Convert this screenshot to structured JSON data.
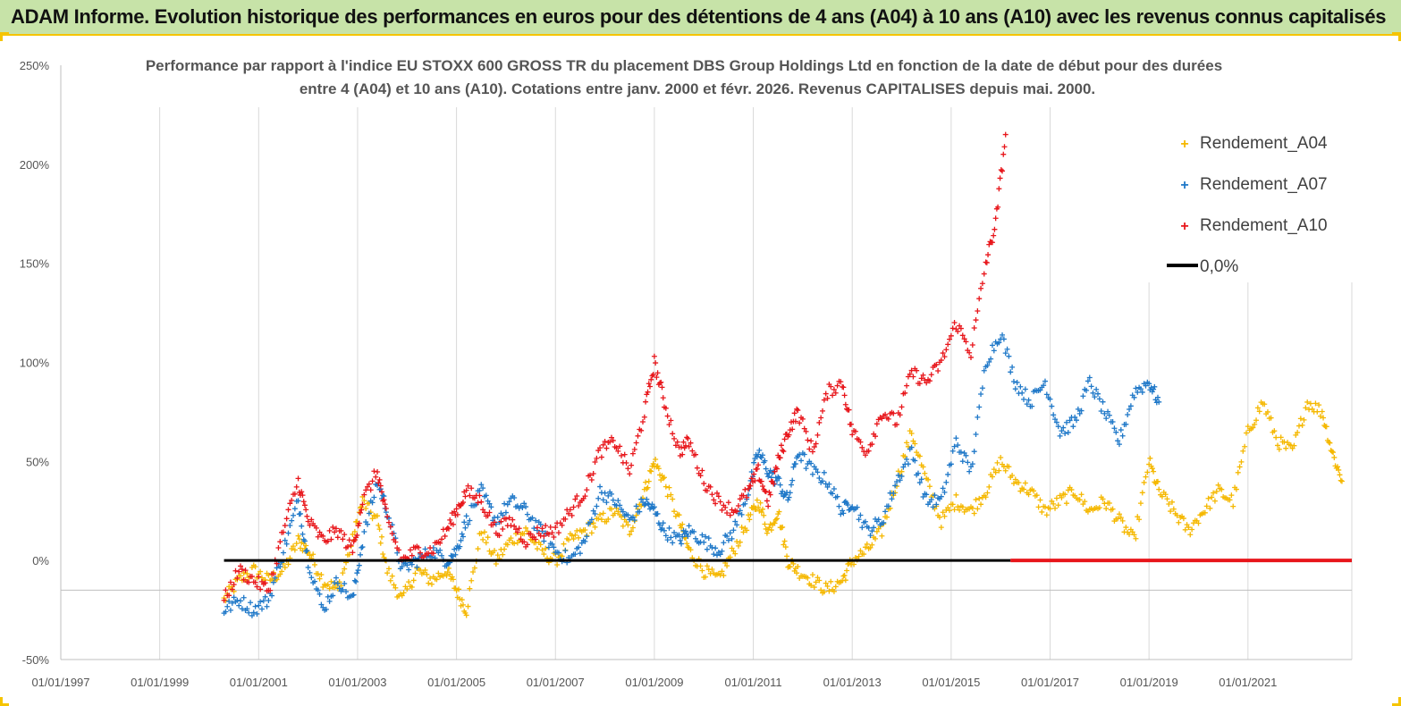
{
  "header": {
    "title": "ADAM Informe. Evolution historique des performances en euros pour des détentions de 4 ans (A04) à 10 ans (A10) avec les revenus connus capitalisés"
  },
  "colors": {
    "a04": "#f5b800",
    "a07": "#1f78c8",
    "a10": "#e8161b",
    "zero": "#000000",
    "banner": "#c7e3a8",
    "accent": "#f5c400"
  },
  "chart_data": {
    "type": "scatter",
    "title_lines": [
      "Performance par rapport à l'indice EU STOXX 600 GROSS TR  du placement DBS Group Holdings Ltd en fonction de la date de début pour des durées",
      "entre 4 (A04) et 10 ans (A10).  Cotations entre janv. 2000 et févr. 2026. Revenus CAPITALISES depuis mai. 2000."
    ],
    "xlabel": "",
    "ylabel": "",
    "x_ticks": [
      "01/01/1997",
      "01/01/1999",
      "01/01/2001",
      "01/01/2003",
      "01/01/2005",
      "01/01/2007",
      "01/01/2009",
      "01/01/2011",
      "01/01/2013",
      "01/01/2015",
      "01/01/2017",
      "01/01/2019",
      "01/01/2021"
    ],
    "x_range": [
      1997.0,
      2023.1
    ],
    "y_ticks": [
      "250%",
      "200%",
      "150%",
      "100%",
      "50%",
      "0%",
      "-50%"
    ],
    "y_range": [
      -50,
      250
    ],
    "legend": [
      {
        "name": "Rendement_A04",
        "color_key": "a04"
      },
      {
        "name": "Rendement_A07",
        "color_key": "a07"
      },
      {
        "name": "Rendement_A10",
        "color_key": "a10"
      },
      {
        "name": "0,0%",
        "color_key": "zero"
      }
    ],
    "legend_position": "top-right",
    "series": [
      {
        "name": "Rendement_A04",
        "color_key": "a04",
        "points": [
          [
            2000.3,
            -20
          ],
          [
            2000.6,
            -10
          ],
          [
            2000.9,
            -5
          ],
          [
            2001.2,
            -10
          ],
          [
            2001.5,
            -5
          ],
          [
            2001.8,
            10
          ],
          [
            2002.0,
            5
          ],
          [
            2002.3,
            -10
          ],
          [
            2002.6,
            -15
          ],
          [
            2002.9,
            10
          ],
          [
            2003.1,
            30
          ],
          [
            2003.4,
            20
          ],
          [
            2003.6,
            -5
          ],
          [
            2003.9,
            -20
          ],
          [
            2004.2,
            -5
          ],
          [
            2004.5,
            -10
          ],
          [
            2004.8,
            -5
          ],
          [
            2005.0,
            -15
          ],
          [
            2005.2,
            -25
          ],
          [
            2005.5,
            15
          ],
          [
            2005.8,
            0
          ],
          [
            2006.1,
            10
          ],
          [
            2006.4,
            15
          ],
          [
            2006.7,
            5
          ],
          [
            2007.0,
            0
          ],
          [
            2007.3,
            10
          ],
          [
            2007.6,
            15
          ],
          [
            2007.9,
            20
          ],
          [
            2008.2,
            25
          ],
          [
            2008.5,
            15
          ],
          [
            2008.8,
            35
          ],
          [
            2009.0,
            50
          ],
          [
            2009.2,
            40
          ],
          [
            2009.5,
            20
          ],
          [
            2009.7,
            5
          ],
          [
            2010.0,
            -5
          ],
          [
            2010.3,
            -10
          ],
          [
            2010.6,
            5
          ],
          [
            2010.9,
            20
          ],
          [
            2011.1,
            30
          ],
          [
            2011.3,
            15
          ],
          [
            2011.5,
            25
          ],
          [
            2011.7,
            0
          ],
          [
            2011.9,
            -5
          ],
          [
            2012.2,
            -10
          ],
          [
            2012.5,
            -15
          ],
          [
            2012.8,
            -10
          ],
          [
            2013.0,
            0
          ],
          [
            2013.3,
            5
          ],
          [
            2013.6,
            15
          ],
          [
            2013.9,
            40
          ],
          [
            2014.2,
            65
          ],
          [
            2014.5,
            40
          ],
          [
            2014.8,
            20
          ],
          [
            2015.1,
            30
          ],
          [
            2015.4,
            25
          ],
          [
            2015.7,
            35
          ],
          [
            2016.0,
            50
          ],
          [
            2016.3,
            40
          ],
          [
            2016.6,
            35
          ],
          [
            2016.9,
            25
          ],
          [
            2017.2,
            30
          ],
          [
            2017.5,
            35
          ],
          [
            2017.8,
            25
          ],
          [
            2018.1,
            30
          ],
          [
            2018.4,
            20
          ],
          [
            2018.7,
            10
          ],
          [
            2019.0,
            50
          ],
          [
            2019.2,
            35
          ],
          [
            2019.5,
            25
          ],
          [
            2019.8,
            15
          ],
          [
            2020.1,
            25
          ],
          [
            2020.4,
            35
          ],
          [
            2020.7,
            30
          ],
          [
            2021.0,
            65
          ],
          [
            2021.3,
            80
          ],
          [
            2021.6,
            60
          ],
          [
            2021.9,
            55
          ],
          [
            2022.2,
            80
          ],
          [
            2022.5,
            75
          ],
          [
            2022.7,
            55
          ],
          [
            2022.9,
            40
          ]
        ]
      },
      {
        "name": "Rendement_A07",
        "color_key": "a07",
        "points": [
          [
            2000.3,
            -25
          ],
          [
            2000.6,
            -20
          ],
          [
            2000.9,
            -25
          ],
          [
            2001.2,
            -20
          ],
          [
            2001.5,
            5
          ],
          [
            2001.8,
            30
          ],
          [
            2002.0,
            0
          ],
          [
            2002.3,
            -25
          ],
          [
            2002.6,
            -10
          ],
          [
            2002.9,
            -20
          ],
          [
            2003.1,
            10
          ],
          [
            2003.4,
            40
          ],
          [
            2003.6,
            25
          ],
          [
            2003.9,
            -5
          ],
          [
            2004.2,
            0
          ],
          [
            2004.5,
            5
          ],
          [
            2004.8,
            0
          ],
          [
            2005.0,
            5
          ],
          [
            2005.2,
            20
          ],
          [
            2005.5,
            35
          ],
          [
            2005.8,
            20
          ],
          [
            2006.1,
            30
          ],
          [
            2006.4,
            25
          ],
          [
            2006.7,
            15
          ],
          [
            2007.0,
            5
          ],
          [
            2007.3,
            0
          ],
          [
            2007.6,
            10
          ],
          [
            2007.9,
            35
          ],
          [
            2008.2,
            30
          ],
          [
            2008.5,
            20
          ],
          [
            2008.8,
            30
          ],
          [
            2009.0,
            25
          ],
          [
            2009.2,
            15
          ],
          [
            2009.5,
            10
          ],
          [
            2009.7,
            15
          ],
          [
            2010.0,
            10
          ],
          [
            2010.3,
            5
          ],
          [
            2010.6,
            15
          ],
          [
            2010.9,
            35
          ],
          [
            2011.1,
            55
          ],
          [
            2011.3,
            45
          ],
          [
            2011.5,
            40
          ],
          [
            2011.7,
            30
          ],
          [
            2011.9,
            55
          ],
          [
            2012.2,
            45
          ],
          [
            2012.5,
            40
          ],
          [
            2012.8,
            25
          ],
          [
            2013.0,
            30
          ],
          [
            2013.3,
            15
          ],
          [
            2013.6,
            20
          ],
          [
            2013.9,
            40
          ],
          [
            2014.2,
            55
          ],
          [
            2014.5,
            30
          ],
          [
            2014.8,
            30
          ],
          [
            2015.1,
            60
          ],
          [
            2015.4,
            45
          ],
          [
            2015.7,
            100
          ],
          [
            2016.0,
            115
          ],
          [
            2016.3,
            90
          ],
          [
            2016.6,
            80
          ],
          [
            2016.9,
            90
          ],
          [
            2017.2,
            65
          ],
          [
            2017.5,
            70
          ],
          [
            2017.8,
            90
          ],
          [
            2018.1,
            75
          ],
          [
            2018.4,
            60
          ],
          [
            2018.7,
            85
          ],
          [
            2019.0,
            90
          ],
          [
            2019.2,
            80
          ]
        ]
      },
      {
        "name": "Rendement_A10",
        "color_key": "a10",
        "points": [
          [
            2000.3,
            -20
          ],
          [
            2000.6,
            -5
          ],
          [
            2000.9,
            -10
          ],
          [
            2001.2,
            -15
          ],
          [
            2001.5,
            15
          ],
          [
            2001.8,
            40
          ],
          [
            2002.0,
            20
          ],
          [
            2002.3,
            10
          ],
          [
            2002.6,
            15
          ],
          [
            2002.9,
            5
          ],
          [
            2003.1,
            30
          ],
          [
            2003.4,
            45
          ],
          [
            2003.6,
            20
          ],
          [
            2003.9,
            0
          ],
          [
            2004.2,
            5
          ],
          [
            2004.5,
            5
          ],
          [
            2004.8,
            15
          ],
          [
            2005.0,
            25
          ],
          [
            2005.2,
            35
          ],
          [
            2005.5,
            30
          ],
          [
            2005.8,
            15
          ],
          [
            2006.1,
            20
          ],
          [
            2006.4,
            10
          ],
          [
            2006.7,
            15
          ],
          [
            2007.0,
            15
          ],
          [
            2007.3,
            25
          ],
          [
            2007.6,
            35
          ],
          [
            2007.9,
            55
          ],
          [
            2008.2,
            60
          ],
          [
            2008.5,
            45
          ],
          [
            2008.8,
            75
          ],
          [
            2009.0,
            100
          ],
          [
            2009.2,
            80
          ],
          [
            2009.5,
            55
          ],
          [
            2009.7,
            60
          ],
          [
            2010.0,
            40
          ],
          [
            2010.3,
            30
          ],
          [
            2010.6,
            25
          ],
          [
            2010.9,
            35
          ],
          [
            2011.1,
            45
          ],
          [
            2011.3,
            30
          ],
          [
            2011.5,
            50
          ],
          [
            2011.7,
            65
          ],
          [
            2011.9,
            75
          ],
          [
            2012.2,
            55
          ],
          [
            2012.5,
            85
          ],
          [
            2012.8,
            90
          ],
          [
            2013.0,
            65
          ],
          [
            2013.3,
            55
          ],
          [
            2013.6,
            75
          ],
          [
            2013.9,
            70
          ],
          [
            2014.2,
            95
          ],
          [
            2014.5,
            90
          ],
          [
            2014.8,
            100
          ],
          [
            2015.1,
            120
          ],
          [
            2015.4,
            105
          ],
          [
            2015.7,
            150
          ],
          [
            2015.9,
            170
          ],
          [
            2016.1,
            215
          ]
        ]
      }
    ],
    "zero_line": {
      "name": "0,0%",
      "value": 0,
      "x_start": 2000.3,
      "x_end": 2016.2
    },
    "a10_after_end_value": 0
  }
}
